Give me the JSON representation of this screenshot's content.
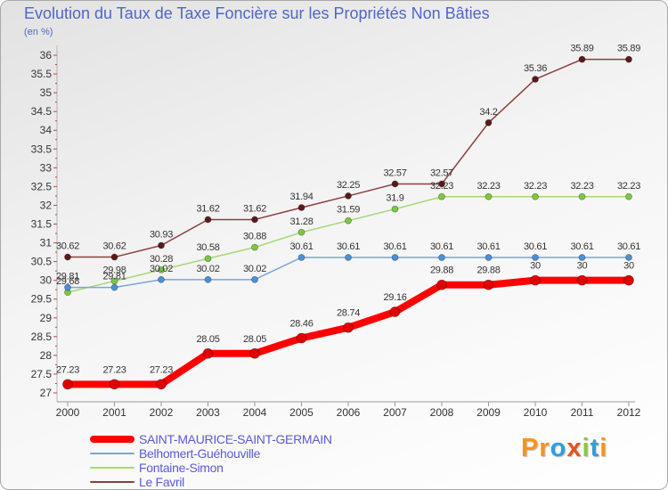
{
  "chart_data": {
    "type": "line",
    "title": "Evolution du Taux de Taxe Foncière sur les Propriétés Non Bâties",
    "subtitle": "(en %)",
    "categories": [
      "2000",
      "2001",
      "2002",
      "2003",
      "2004",
      "2005",
      "2006",
      "2007",
      "2008",
      "2009",
      "2010",
      "2011",
      "2012"
    ],
    "ylim": [
      27,
      36
    ],
    "ytick_step": 0.5,
    "grid": false,
    "legend_position": "bottom-left",
    "series": [
      {
        "name": "SAINT-MAURICE-SAINT-GERMAIN",
        "color": "#ff0000",
        "marker_color": "#e00000",
        "values": [
          27.23,
          27.23,
          27.23,
          28.05,
          28.05,
          28.46,
          28.74,
          29.16,
          29.88,
          29.88,
          30,
          30,
          30
        ]
      },
      {
        "name": "Belhomert-Guéhouville",
        "color": "#7aa6d4",
        "marker_color": "#4a90d9",
        "values": [
          29.81,
          29.81,
          30.02,
          30.02,
          30.02,
          30.61,
          30.61,
          30.61,
          30.61,
          30.61,
          30.61,
          30.61,
          30.61
        ]
      },
      {
        "name": "Fontaine-Simon",
        "color": "#a8d878",
        "marker_color": "#7ac943",
        "values": [
          29.68,
          29.98,
          30.28,
          30.58,
          30.88,
          31.28,
          31.59,
          31.9,
          32.23,
          32.23,
          32.23,
          32.23,
          32.23
        ]
      },
      {
        "name": "Le Favril",
        "color": "#8b3e3e",
        "marker_color": "#5a1a1a",
        "values": [
          30.62,
          30.62,
          30.93,
          31.62,
          31.62,
          31.94,
          32.25,
          32.57,
          32.57,
          34.2,
          35.36,
          35.89,
          35.89
        ]
      }
    ]
  },
  "logo": {
    "text": "Proxiti",
    "colors": [
      "#f7941d",
      "#f7941d",
      "#2e9fd9",
      "#e8501f",
      "#8dc63f",
      "#2e9fd9",
      "#f7941d"
    ]
  }
}
